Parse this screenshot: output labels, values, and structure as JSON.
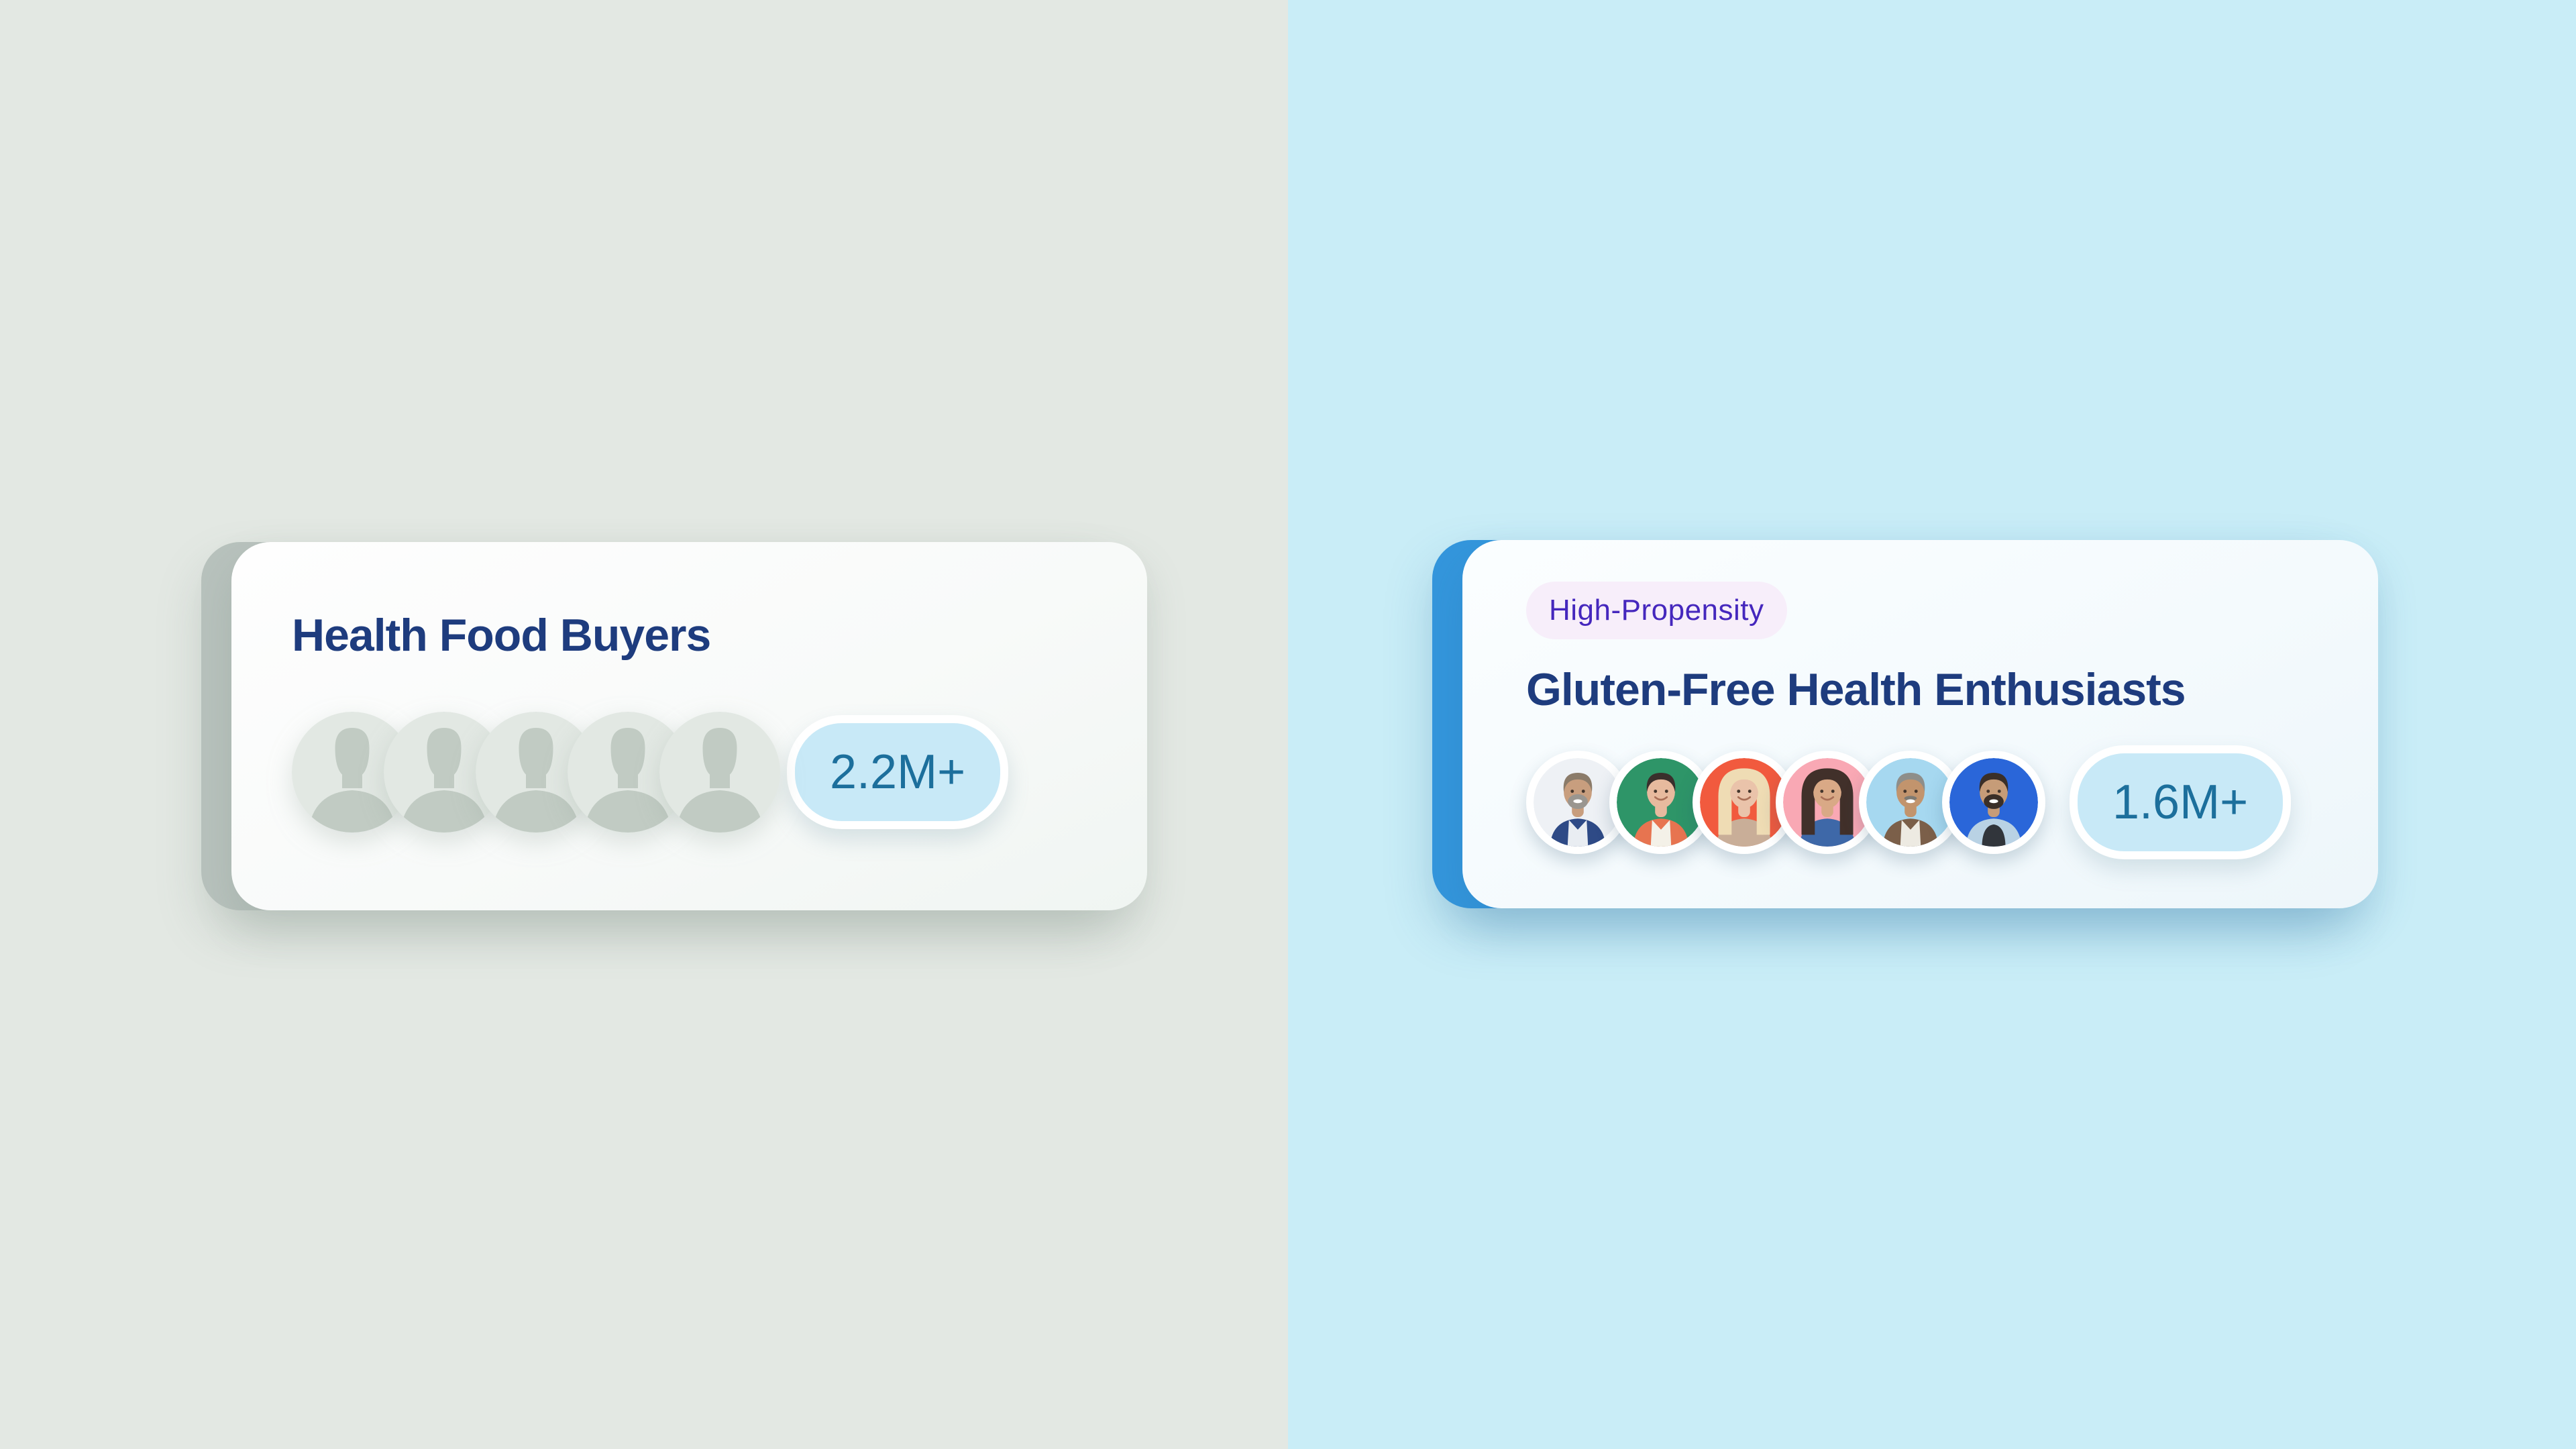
{
  "page": {
    "left_background": "#E3E8E3",
    "right_background": "#C9EDF7"
  },
  "left_card": {
    "title": "Health Food Buyers",
    "count": "2.2M+",
    "title_color": "#1E3C7E",
    "accent_color": "#B8C2BD",
    "count_pill_bg": "#C8E9F7",
    "count_text_color": "#1C6F9C",
    "avatar_group": {
      "icon": "person-silhouette-icon",
      "count": 5,
      "circle_color": "#E2E8E3",
      "silhouette_color": "#C1CBC3"
    }
  },
  "right_card": {
    "tag": "High-Propensity",
    "tag_text_color": "#4527BD",
    "tag_bg": "#F7EEFA",
    "title": "Gluten-Free Health Enthusiasts",
    "count": "1.6M+",
    "title_color": "#1E3C7E",
    "accent_color": "#3496DC",
    "count_pill_bg": "#C8E9F7",
    "count_text_color": "#1C6F9C",
    "avatars": [
      {
        "name": "smiling-older-man-gray-beard",
        "bg": "#EEF1F5",
        "skin": "#C89E7E",
        "hair": "#8B7B69",
        "beard": "#9A9690",
        "shirt": "#2E4A86",
        "collar": "#E9EDF2",
        "hair_length": "short"
      },
      {
        "name": "smiling-woman-short-dark-hair",
        "bg": "#2E9568",
        "skin": "#E7BA9E",
        "hair": "#3A2F2C",
        "shirt": "#E77450",
        "collar": "#F4F1E8",
        "hair_length": "short"
      },
      {
        "name": "smiling-blonde-woman",
        "bg": "#F15A3E",
        "skin": "#EAC3AA",
        "hair": "#EFDCB4",
        "shirt": "#C9AE98",
        "hair_length": "long"
      },
      {
        "name": "smiling-woman-long-dark-hair",
        "bg": "#F9A8B4",
        "skin": "#D9A986",
        "hair": "#41302A",
        "shirt": "#3E68A8",
        "hair_length": "long"
      },
      {
        "name": "smiling-older-man-mustache",
        "bg": "#A6D8F0",
        "skin": "#C2946D",
        "hair": "#8E8E8A",
        "mustache": "#7E7A72",
        "shirt": "#7B5F49",
        "collar": "#EDEAE2",
        "hair_length": "short"
      },
      {
        "name": "smiling-man-beard-blue-jacket",
        "bg": "#2A66D9",
        "skin": "#C69C78",
        "hair": "#3A2F28",
        "beard": "#3A2F28",
        "shirt": "#B9D2E4",
        "tee": "#31353B",
        "hair_length": "short"
      }
    ]
  }
}
